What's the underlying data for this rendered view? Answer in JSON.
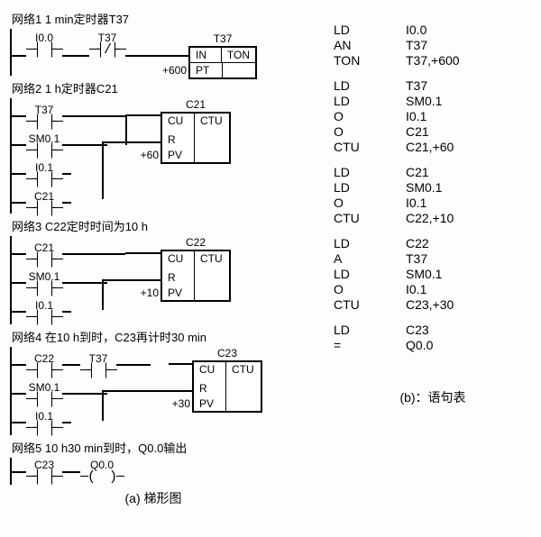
{
  "networks": [
    {
      "title": "网络1  1 min定时器T37",
      "rungs": [
        {
          "contacts": [
            {
              "label": "I0.0",
              "type": "NO"
            },
            {
              "label": "T37",
              "type": "NC"
            }
          ],
          "box": {
            "title": "T37",
            "type": "TON",
            "pins": [
              {
                "name": "IN"
              },
              {
                "name": "PT",
                "val": "+600"
              }
            ]
          }
        }
      ]
    },
    {
      "title": "网络2  1 h定时器C21",
      "rungs": [
        {
          "branches": [
            [
              {
                "label": "T37",
                "type": "NO"
              }
            ],
            [
              {
                "label": "SM0.1",
                "type": "NO"
              }
            ],
            [
              {
                "label": "I0.1",
                "type": "NO"
              }
            ],
            [
              {
                "label": "C21",
                "type": "NO"
              }
            ]
          ],
          "box": {
            "title": "C21",
            "type": "CTU",
            "pins": [
              {
                "name": "CU"
              },
              {
                "name": "R"
              },
              {
                "name": "PV",
                "val": "+60"
              }
            ]
          }
        }
      ]
    },
    {
      "title": "网络3  C22定时时间为10 h",
      "rungs": [
        {
          "branches": [
            [
              {
                "label": "C21",
                "type": "NO"
              }
            ],
            [
              {
                "label": "SM0.1",
                "type": "NO"
              }
            ],
            [
              {
                "label": "I0.1",
                "type": "NO"
              }
            ]
          ],
          "box": {
            "title": "C22",
            "type": "CTU",
            "pins": [
              {
                "name": "CU"
              },
              {
                "name": "R"
              },
              {
                "name": "PV",
                "val": "+10"
              }
            ]
          }
        }
      ]
    },
    {
      "title": "网络4  在10 h到时，C23再计时30 min",
      "rungs": [
        {
          "branches": [
            [
              {
                "label": "C22",
                "type": "NO"
              },
              {
                "label": "T37",
                "type": "NO"
              }
            ],
            [
              {
                "label": "SM0.1",
                "type": "NO"
              }
            ],
            [
              {
                "label": "I0.1",
                "type": "NO"
              }
            ]
          ],
          "box": {
            "title": "C23",
            "type": "CTU",
            "pins": [
              {
                "name": "CU"
              },
              {
                "name": "R"
              },
              {
                "name": "PV",
                "val": "+30"
              }
            ]
          }
        }
      ]
    },
    {
      "title": "网络5  10 h30 min到时，Q0.0输出",
      "rungs": [
        {
          "contacts": [
            {
              "label": "C23",
              "type": "NO"
            }
          ],
          "coil": {
            "label": "Q0.0"
          }
        }
      ]
    }
  ],
  "captions": {
    "a": "(a) 梯形图",
    "b": "(b)：语句表"
  },
  "il": [
    [
      "LD",
      "I0.0"
    ],
    [
      "AN",
      "T37"
    ],
    [
      "TON",
      "T37,+600"
    ],
    [],
    [
      "LD",
      "T37"
    ],
    [
      "LD",
      "SM0.1"
    ],
    [
      "O",
      "I0.1"
    ],
    [
      "O",
      "C21"
    ],
    [
      "CTU",
      "C21,+60"
    ],
    [],
    [
      "LD",
      "C21"
    ],
    [
      "LD",
      "SM0.1"
    ],
    [
      "O",
      "I0.1"
    ],
    [
      "CTU",
      "C22,+10"
    ],
    [],
    [
      "LD",
      "C22"
    ],
    [
      "A",
      "T37"
    ],
    [
      "LD",
      "SM0.1"
    ],
    [
      "O",
      "I0.1"
    ],
    [
      "CTU",
      "C23,+30"
    ],
    [],
    [
      "LD",
      "C23"
    ],
    [
      "=",
      "Q0.0"
    ]
  ],
  "style": {
    "line_color": "#000000",
    "font_body": 13,
    "contact_gap": 8
  }
}
